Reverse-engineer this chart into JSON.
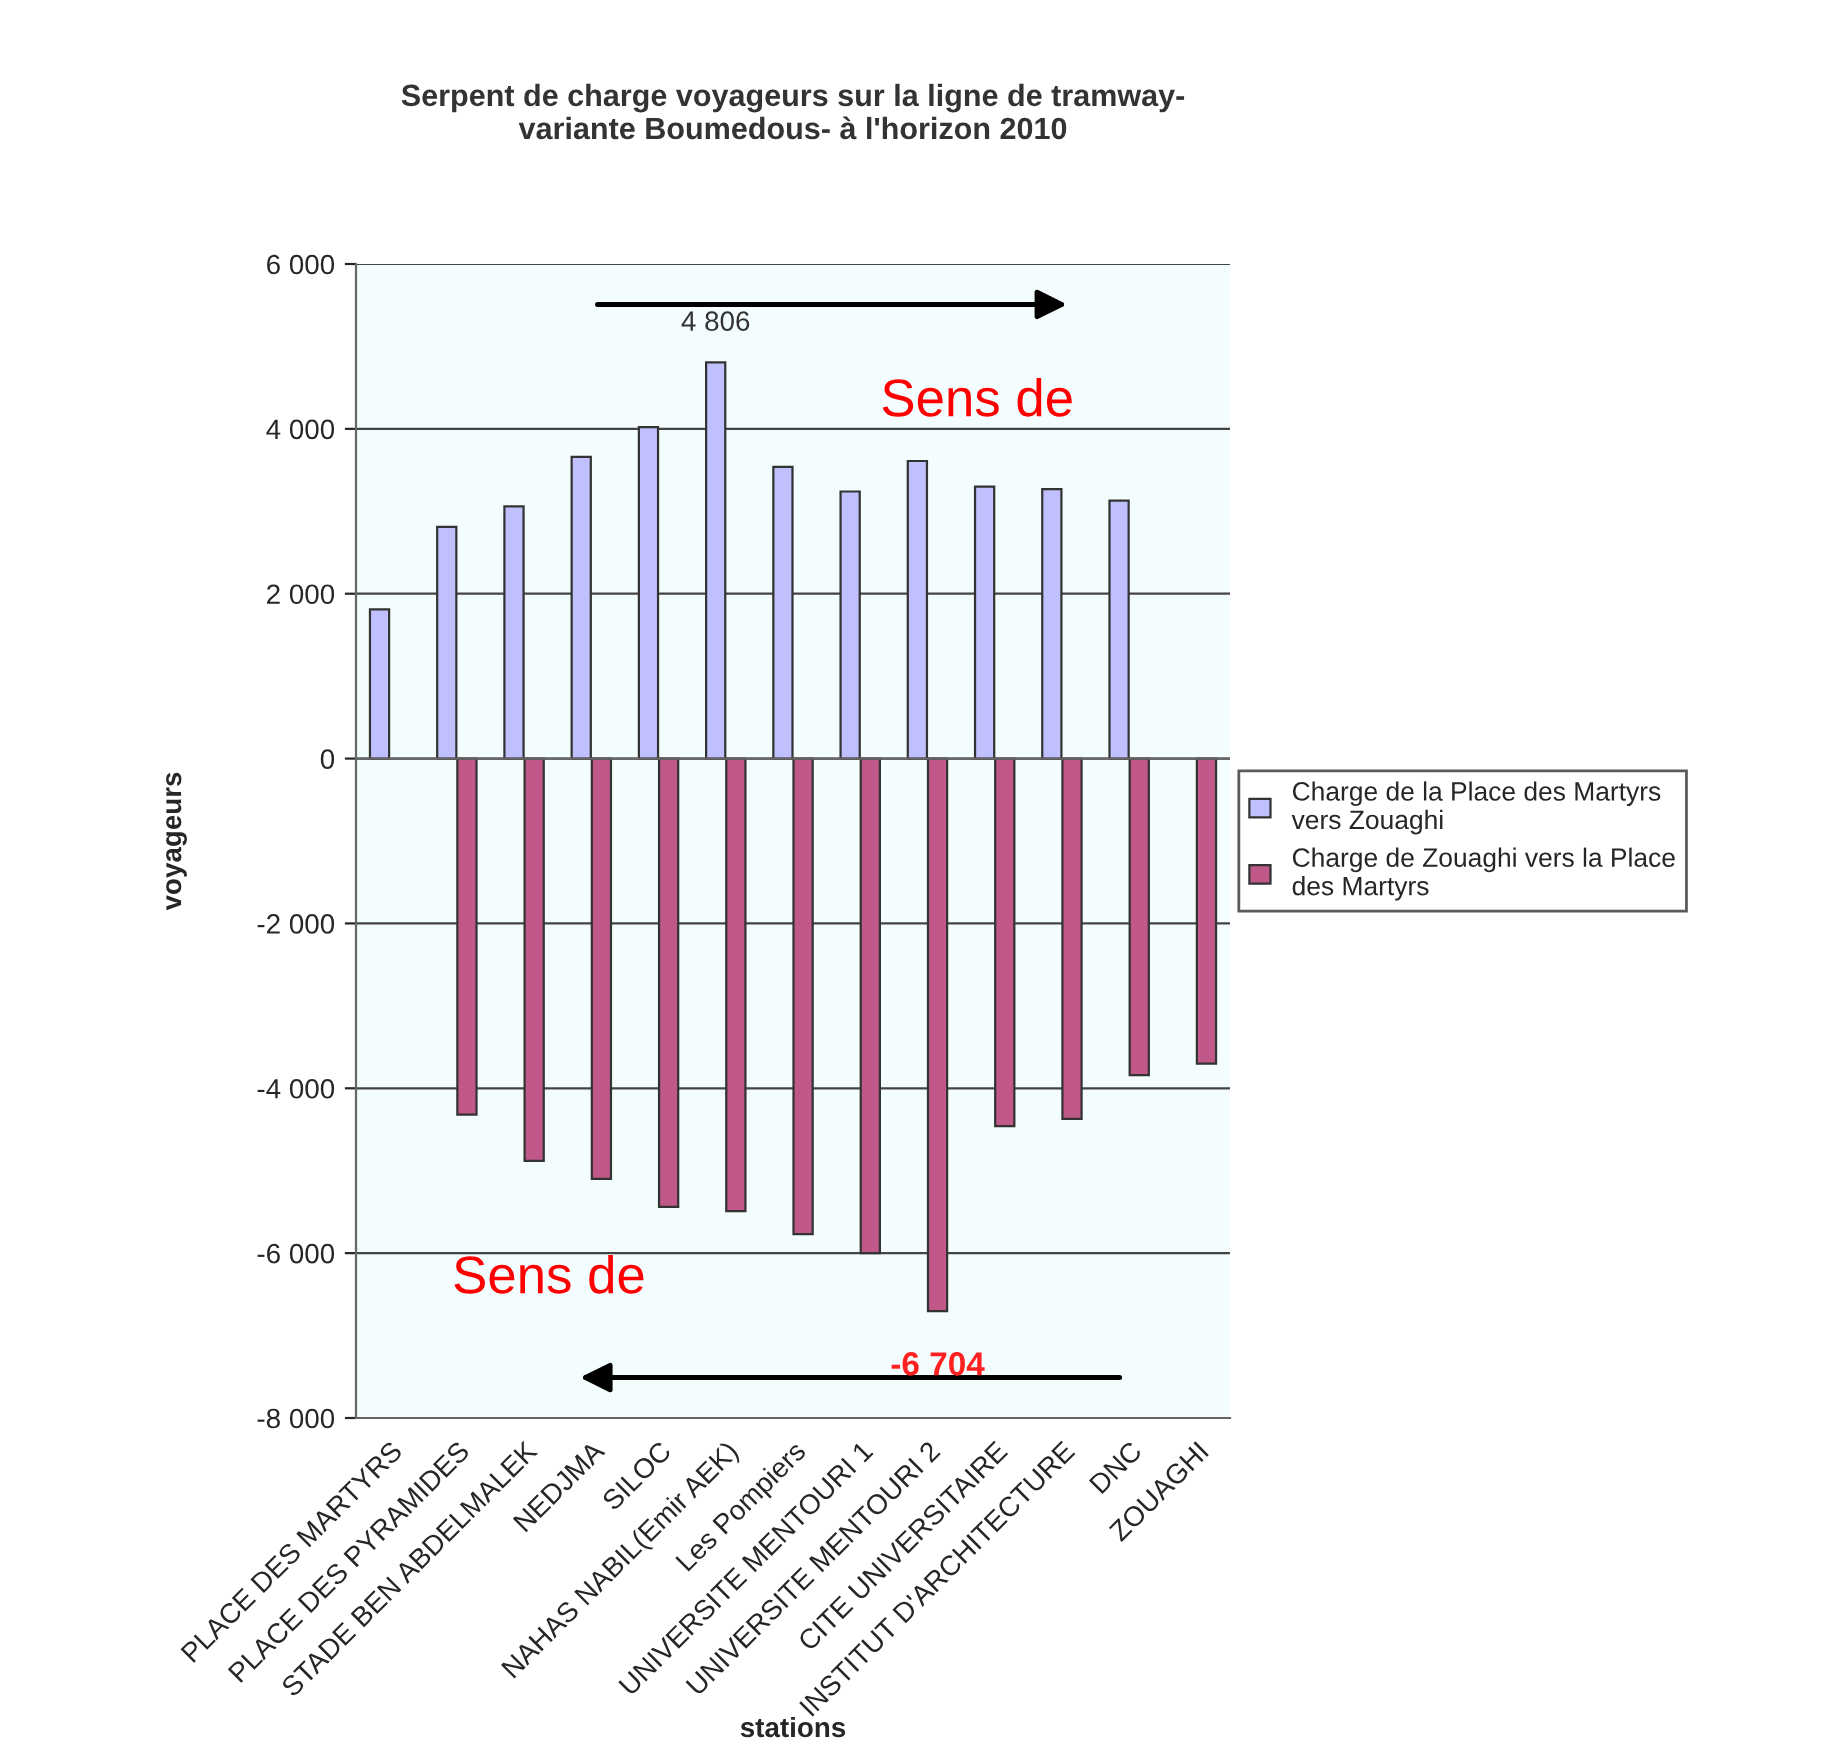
{
  "chart_data": {
    "type": "bar",
    "title": "Serpent de charge voyageurs sur la ligne de tramway-\nvariante Boumedous- à l'horizon 2010",
    "xlabel": "stations",
    "ylabel": "voyageurs",
    "categories": [
      "PLACE DES MARTYRS",
      "PLACE DES PYRAMIDES",
      "STADE BEN ABDELMALEK",
      "NEDJMA",
      "SILOC",
      "NAHAS NABIL(Emir AEK)",
      "Les Pompiers",
      "UNIVERSITE MENTOURI 1",
      "UNIVERSITE MENTOURI 2",
      "CITE UNIVERSITAIRE",
      "INSTITUT D'ARCHITECTURE",
      "DNC",
      "ZOUAGHI"
    ],
    "series": [
      {
        "name": "Charge de la Place des Martyrs vers Zouaghi",
        "color": "#c0c0ff",
        "values": [
          1810,
          2810,
          3060,
          3660,
          4020,
          4806,
          3540,
          3240,
          3610,
          3300,
          3270,
          3130,
          null
        ],
        "value_labels": [
          null,
          null,
          null,
          null,
          null,
          "4 806",
          null,
          null,
          null,
          null,
          null,
          null,
          null
        ]
      },
      {
        "name": "Charge de Zouaghi vers la Place des Martyrs",
        "color": "#c0588a",
        "values": [
          null,
          -4320,
          -4880,
          -5100,
          -5440,
          -5490,
          -5770,
          -6000,
          -6704,
          -4460,
          -4370,
          -3840,
          -3700
        ],
        "value_labels": [
          null,
          null,
          null,
          null,
          null,
          null,
          null,
          null,
          "-6 704",
          null,
          null,
          null,
          null
        ]
      }
    ],
    "ylim": [
      -8000,
      6000
    ],
    "yticks": [
      {
        "value": -8000,
        "label": "-8 000"
      },
      {
        "value": -6000,
        "label": "-6 000"
      },
      {
        "value": -4000,
        "label": "-4 000"
      },
      {
        "value": -2000,
        "label": "-2 000"
      },
      0,
      {
        "value": 2000,
        "label": "2 000"
      },
      {
        "value": 4000,
        "label": "4 000"
      },
      {
        "value": 6000,
        "label": "6 000"
      }
    ],
    "grid": "y",
    "legend": "right",
    "annotations": [
      "Sens de",
      "Sens de"
    ]
  }
}
